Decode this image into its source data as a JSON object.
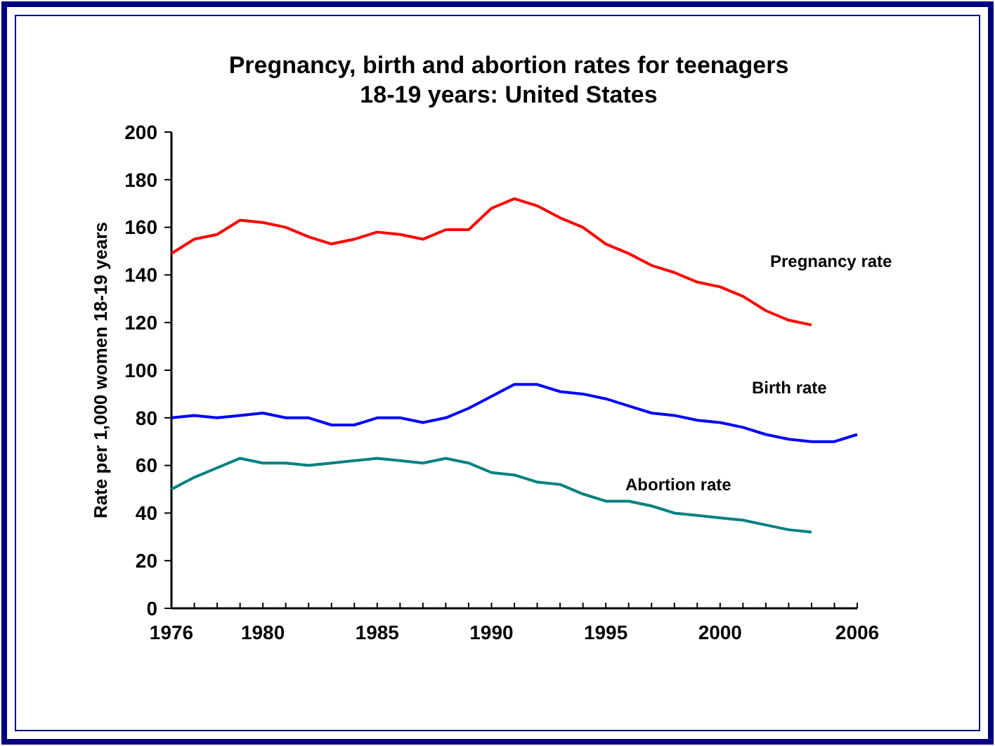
{
  "chart_data": {
    "type": "line",
    "title": "Pregnancy, birth and abortion rates for teenagers\n18-19 years: United States",
    "ylabel": "Rate per 1,000 women 18-19 years",
    "xlim": [
      1976,
      2006
    ],
    "xticks": [
      1976,
      {
        "value": 1977,
        "label": null
      },
      {
        "value": 1978,
        "label": null
      },
      {
        "value": 1979,
        "label": null
      },
      1980,
      {
        "value": 1981,
        "label": null
      },
      {
        "value": 1982,
        "label": null
      },
      {
        "value": 1983,
        "label": null
      },
      {
        "value": 1984,
        "label": null
      },
      1985,
      {
        "value": 1986,
        "label": null
      },
      {
        "value": 1987,
        "label": null
      },
      {
        "value": 1988,
        "label": null
      },
      {
        "value": 1989,
        "label": null
      },
      1990,
      {
        "value": 1991,
        "label": null
      },
      {
        "value": 1992,
        "label": null
      },
      {
        "value": 1993,
        "label": null
      },
      {
        "value": 1994,
        "label": null
      },
      1995,
      {
        "value": 1996,
        "label": null
      },
      {
        "value": 1997,
        "label": null
      },
      {
        "value": 1998,
        "label": null
      },
      {
        "value": 1999,
        "label": null
      },
      2000,
      {
        "value": 2001,
        "label": null
      },
      {
        "value": 2002,
        "label": null
      },
      {
        "value": 2003,
        "label": null
      },
      {
        "value": 2004,
        "label": null
      },
      {
        "value": 2005,
        "label": null
      },
      2006
    ],
    "ylim": [
      0,
      200
    ],
    "yticks": [
      0,
      20,
      40,
      60,
      80,
      100,
      120,
      140,
      160,
      180,
      200
    ],
    "grid": false,
    "marker": "none",
    "line_style": "solid",
    "series": [
      {
        "name": "Pregnancy rate",
        "color": "#ff0000",
        "x": [
          1976,
          1977,
          1978,
          1979,
          1980,
          1981,
          1982,
          1983,
          1984,
          1985,
          1986,
          1987,
          1988,
          1989,
          1990,
          1991,
          1992,
          1993,
          1994,
          1995,
          1996,
          1997,
          1998,
          1999,
          2000,
          2001,
          2002,
          2003,
          2004
        ],
        "values": [
          149,
          155,
          157,
          163,
          162,
          160,
          156,
          153,
          155,
          158,
          157,
          155,
          159,
          159,
          168,
          172,
          169,
          164,
          160,
          153,
          149,
          144,
          141,
          137,
          135,
          131,
          125,
          121,
          119
        ]
      },
      {
        "name": "Birth rate",
        "color": "#0000ff",
        "x": [
          1976,
          1977,
          1978,
          1979,
          1980,
          1981,
          1982,
          1983,
          1984,
          1985,
          1986,
          1987,
          1988,
          1989,
          1990,
          1991,
          1992,
          1993,
          1994,
          1995,
          1996,
          1997,
          1998,
          1999,
          2000,
          2001,
          2002,
          2003,
          2004,
          2005,
          2006
        ],
        "values": [
          80,
          81,
          80,
          81,
          82,
          80,
          80,
          77,
          77,
          80,
          80,
          78,
          80,
          84,
          89,
          94,
          94,
          91,
          90,
          88,
          85,
          82,
          81,
          79,
          78,
          76,
          73,
          71,
          70,
          70,
          73
        ]
      },
      {
        "name": "Abortion rate",
        "color": "#008080",
        "x": [
          1976,
          1977,
          1978,
          1979,
          1980,
          1981,
          1982,
          1983,
          1984,
          1985,
          1986,
          1987,
          1988,
          1989,
          1990,
          1991,
          1992,
          1993,
          1994,
          1995,
          1996,
          1997,
          1998,
          1999,
          2000,
          2001,
          2002,
          2003,
          2004
        ],
        "values": [
          50,
          55,
          59,
          63,
          61,
          61,
          60,
          61,
          62,
          63,
          62,
          61,
          63,
          61,
          57,
          56,
          53,
          52,
          48,
          45,
          45,
          43,
          40,
          39,
          38,
          37,
          35,
          33,
          32
        ]
      }
    ]
  }
}
